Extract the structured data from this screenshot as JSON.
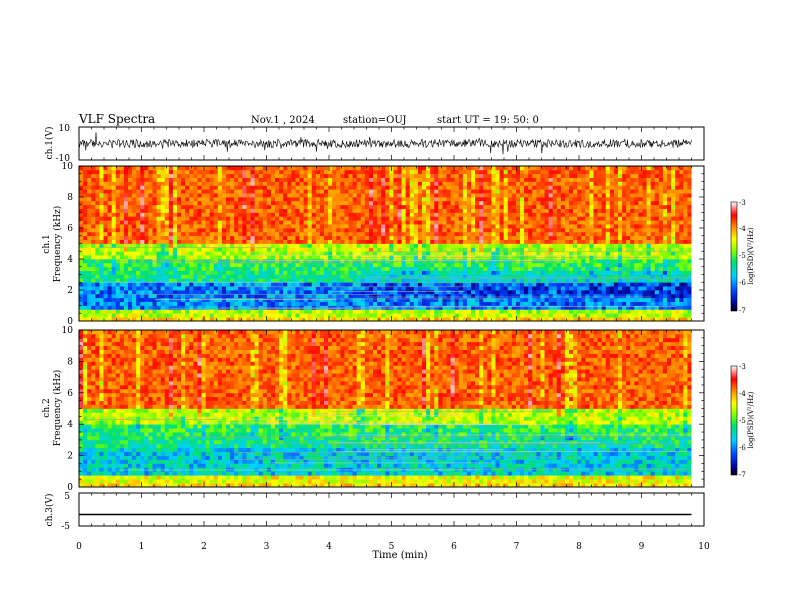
{
  "header": {
    "title": "VLF Spectra",
    "date": "Nov.1 , 2024",
    "station": "station=OUJ",
    "start": "start  UT =   19: 50: 0"
  },
  "chart_data": {
    "type": "heatmap",
    "xlabel": "Time (min)",
    "xlim": [
      0,
      10
    ],
    "xticks": [
      "0",
      "1",
      "2",
      "3",
      "4",
      "5",
      "6",
      "7",
      "8",
      "9",
      "10"
    ],
    "data_end_min": 9.8,
    "panels": [
      {
        "name": "ch.1(V)",
        "kind": "waveform",
        "ylabel": "ch.1(V)",
        "ylim": [
          -10,
          10
        ],
        "yticks": [
          "10",
          "-10"
        ],
        "baseline": 0,
        "noise_amplitude": 2.5
      },
      {
        "name": "ch.1",
        "kind": "spectrogram",
        "ylabel_top": "ch.1",
        "ylabel": "Frequency (kHz)",
        "ylim": [
          0,
          10
        ],
        "yticks": [
          "0",
          "2",
          "4",
          "6",
          "8",
          "10"
        ],
        "colorbar": {
          "label": "log(PSD)(V²/Hz)",
          "range": [
            -7,
            -3
          ],
          "ticks": [
            "-3",
            "-4",
            "-5",
            "-6",
            "-7"
          ]
        }
      },
      {
        "name": "ch.2",
        "kind": "spectrogram",
        "ylabel_top": "ch.2",
        "ylabel": "Frequency (kHz)",
        "ylim": [
          0,
          10
        ],
        "yticks": [
          "0",
          "2",
          "4",
          "6",
          "8",
          "10"
        ],
        "colorbar": {
          "label": "log(PSD)(V²/Hz)",
          "range": [
            -7,
            -3
          ],
          "ticks": [
            "-3",
            "-4",
            "-5",
            "-6",
            "-7"
          ]
        }
      },
      {
        "name": "ch.3(V)",
        "kind": "waveform",
        "ylabel": "ch.3(V)",
        "ylim": [
          -5,
          5
        ],
        "yticks": [
          "5",
          "-5"
        ],
        "baseline": -1.5,
        "noise_amplitude": 0
      }
    ]
  }
}
